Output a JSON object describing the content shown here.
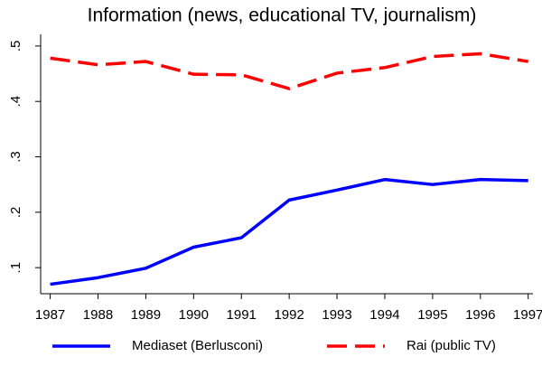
{
  "chart_data": {
    "type": "line",
    "title": "Information (news, educational TV, journalism)",
    "x": [
      1987,
      1988,
      1989,
      1990,
      1991,
      1992,
      1993,
      1994,
      1995,
      1996,
      1997
    ],
    "series": [
      {
        "name": "Mediaset (Berlusconi)",
        "color": "#0000ff",
        "dash": "solid",
        "values": [
          0.07,
          0.082,
          0.099,
          0.137,
          0.154,
          0.222,
          0.24,
          0.259,
          0.25,
          0.259,
          0.257
        ]
      },
      {
        "name": "Rai (public TV)",
        "color": "#ff0000",
        "dash": "dashed",
        "values": [
          0.478,
          0.466,
          0.472,
          0.449,
          0.448,
          0.423,
          0.451,
          0.461,
          0.481,
          0.486,
          0.472
        ]
      }
    ],
    "xlim": [
      1986.8,
      1997.1
    ],
    "xticks": [
      1987,
      1988,
      1989,
      1990,
      1991,
      1992,
      1993,
      1994,
      1995,
      1996,
      1997
    ],
    "ylim": [
      0.053,
      0.521
    ],
    "yticks": [
      {
        "value": 0.1,
        "label": ".1"
      },
      {
        "value": 0.2,
        "label": ".2"
      },
      {
        "value": 0.3,
        "label": ".3"
      },
      {
        "value": 0.4,
        "label": ".4"
      },
      {
        "value": 0.5,
        "label": ".5"
      }
    ],
    "legend": "bottom"
  }
}
